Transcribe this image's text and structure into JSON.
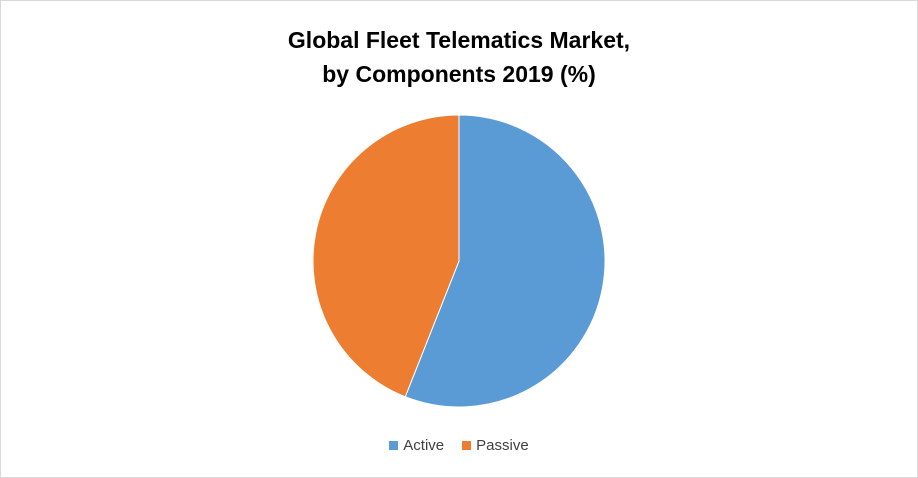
{
  "chart_data": {
    "type": "pie",
    "title_line1": "Global Fleet Telematics Market,",
    "title_line2": "by Components 2019 (%)",
    "series": [
      {
        "name": "Active",
        "value": 56,
        "color": "#5b9bd5"
      },
      {
        "name": "Passive",
        "value": 44,
        "color": "#ed7d31"
      }
    ],
    "start_angle_deg": 0,
    "direction": "clockwise",
    "legend_position": "bottom"
  }
}
